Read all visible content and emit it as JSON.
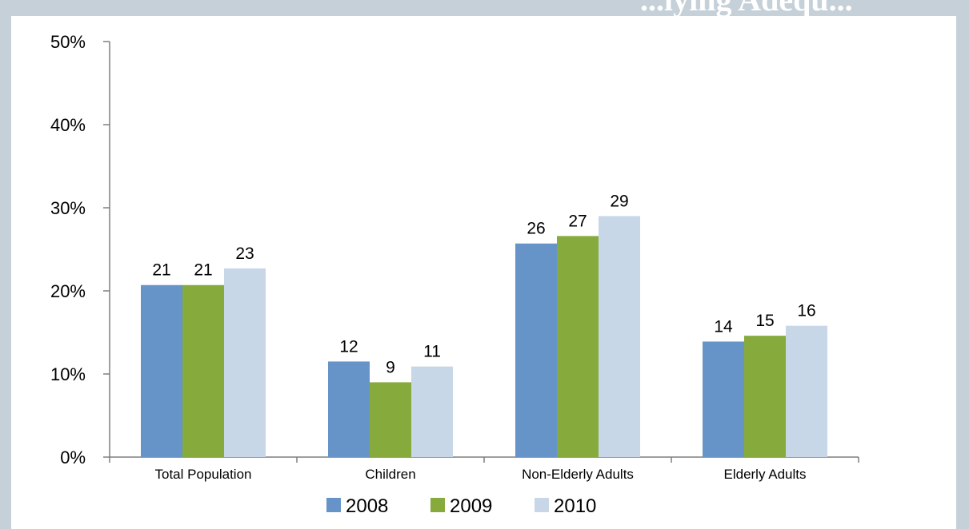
{
  "header": {
    "title_fragment": "...lying Adequ..."
  },
  "colors": {
    "2008": "#6694c8",
    "2009": "#86aa3c",
    "2010": "#c7d7e8",
    "axis": "#7f7f7f",
    "background": "#c5d0d8"
  },
  "chart_data": {
    "type": "bar",
    "title": "",
    "xlabel": "",
    "ylabel": "",
    "ylim": [
      0,
      50
    ],
    "yticks": [
      "0%",
      "10%",
      "20%",
      "30%",
      "40%",
      "50%"
    ],
    "categories": [
      "Total Population",
      "Children",
      "Non-Elderly Adults",
      "Elderly Adults"
    ],
    "series": [
      {
        "name": "2008",
        "values": [
          21,
          12,
          26,
          14
        ],
        "heights": [
          20.7,
          11.5,
          25.7,
          13.9
        ],
        "color": "#6694c8"
      },
      {
        "name": "2009",
        "values": [
          21,
          9,
          27,
          15
        ],
        "heights": [
          20.7,
          9.0,
          26.6,
          14.6
        ],
        "color": "#86aa3c"
      },
      {
        "name": "2010",
        "values": [
          23,
          11,
          29,
          16
        ],
        "heights": [
          22.7,
          10.9,
          29.0,
          15.8
        ],
        "color": "#c7d7e8"
      }
    ],
    "grid": false,
    "legend_position": "bottom"
  }
}
